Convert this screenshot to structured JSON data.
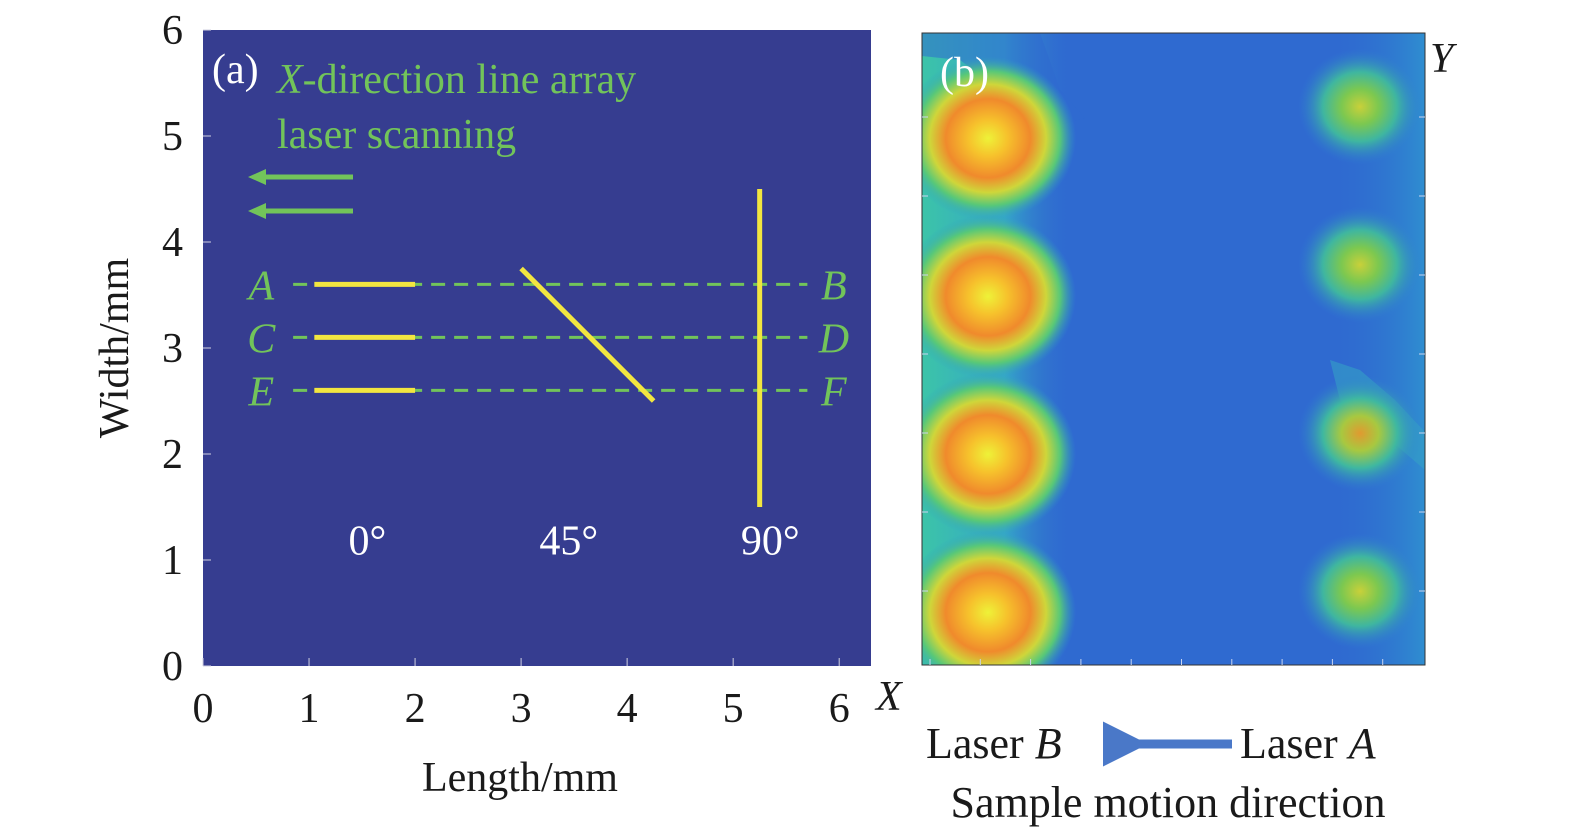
{
  "chart_data": [
    {
      "panel": "a",
      "type": "scatter",
      "panel_label": "(a)",
      "title_axis": "X",
      "title_rest": "-direction line array",
      "title_line2": "laser scanning",
      "xlabel": "Length/mm",
      "ylabel": "Width/mm",
      "xlim": [
        0,
        6.3
      ],
      "ylim": [
        0,
        6
      ],
      "xticks": [
        "0",
        "1",
        "2",
        "3",
        "4",
        "5",
        "6"
      ],
      "yticks": [
        "0",
        "1",
        "2",
        "3",
        "4",
        "5",
        "6"
      ],
      "scan_lines": [
        {
          "angle_label": "0°",
          "segments": [
            {
              "x": [
                1.05,
                2.0
              ],
              "y": [
                3.6,
                3.6
              ]
            },
            {
              "x": [
                1.05,
                2.0
              ],
              "y": [
                3.1,
                3.1
              ]
            },
            {
              "x": [
                1.05,
                2.0
              ],
              "y": [
                2.6,
                2.6
              ]
            }
          ]
        },
        {
          "angle_label": "45°",
          "segments": [
            {
              "x": [
                3.0,
                4.25
              ],
              "y": [
                3.75,
                2.5
              ]
            }
          ]
        },
        {
          "angle_label": "90°",
          "segments": [
            {
              "x": [
                5.25,
                5.25
              ],
              "y": [
                1.5,
                4.5
              ]
            }
          ]
        }
      ],
      "reference_lines": [
        {
          "start_label": "A",
          "end_label": "B",
          "y": 3.6
        },
        {
          "start_label": "C",
          "end_label": "D",
          "y": 3.1
        },
        {
          "start_label": "E",
          "end_label": "F",
          "y": 2.6
        }
      ],
      "colors": {
        "background": "#363d90",
        "scan_line": "#f2e640",
        "annotation": "#72c45a"
      }
    },
    {
      "panel": "b",
      "type": "heatmap",
      "panel_label": "(b)",
      "x_axis_label": "X",
      "y_axis_label": "Y",
      "caption_left_text": "Laser ",
      "caption_left_italic": "B",
      "caption_right_text": "Laser ",
      "caption_right_italic": "A",
      "caption_bottom": "Sample motion direction",
      "hotspots_left_column": [
        {
          "y": 5.0,
          "intensity": 1.0
        },
        {
          "y": 3.5,
          "intensity": 1.0
        },
        {
          "y": 2.0,
          "intensity": 1.0
        },
        {
          "y": 0.5,
          "intensity": 1.0
        }
      ],
      "hotspots_right_column": [
        {
          "y": 5.3,
          "intensity": 0.6
        },
        {
          "y": 3.8,
          "intensity": 0.6
        },
        {
          "y": 2.2,
          "intensity": 0.65
        },
        {
          "y": 0.7,
          "intensity": 0.6
        }
      ],
      "colors": {
        "background": "#2f6ad0",
        "hot": "#f07a28",
        "warm": "#e8e040",
        "mid": "#4cc27a",
        "arrow": "#4a78c8"
      }
    }
  ]
}
